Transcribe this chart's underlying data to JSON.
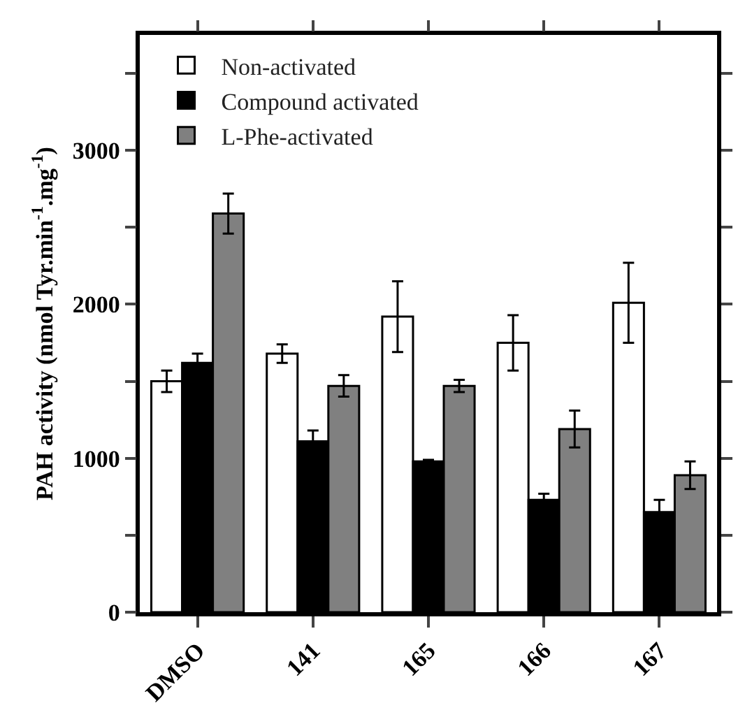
{
  "chart_data": {
    "type": "bar",
    "ylabel": "PAH activity (nmol Tyr.min$^{-1}$.mg$^{-1}$)",
    "categories": [
      "DMSO",
      "141",
      "165",
      "166",
      "167"
    ],
    "series": [
      {
        "name": "Non-activated",
        "color": "#ffffff",
        "values": [
          1500,
          1680,
          1920,
          1750,
          2010
        ],
        "errors": [
          70,
          60,
          230,
          180,
          260
        ]
      },
      {
        "name": "Compound activated",
        "color": "#000000",
        "values": [
          1620,
          1110,
          980,
          730,
          650
        ],
        "errors": [
          60,
          70,
          10,
          40,
          80
        ]
      },
      {
        "name": "L-Phe-activated",
        "color": "#808080",
        "values": [
          2590,
          1470,
          1470,
          1190,
          890
        ],
        "errors": [
          130,
          70,
          40,
          120,
          90
        ]
      }
    ],
    "ylim": [
      0,
      3750
    ],
    "yticks": [
      0,
      {
        "value": 500,
        "label": null
      },
      1000,
      {
        "value": 1500,
        "label": null
      },
      2000,
      {
        "value": 2500,
        "label": null
      },
      3000,
      {
        "value": 3500,
        "label": null
      }
    ],
    "grid": false,
    "legend": "top left"
  }
}
